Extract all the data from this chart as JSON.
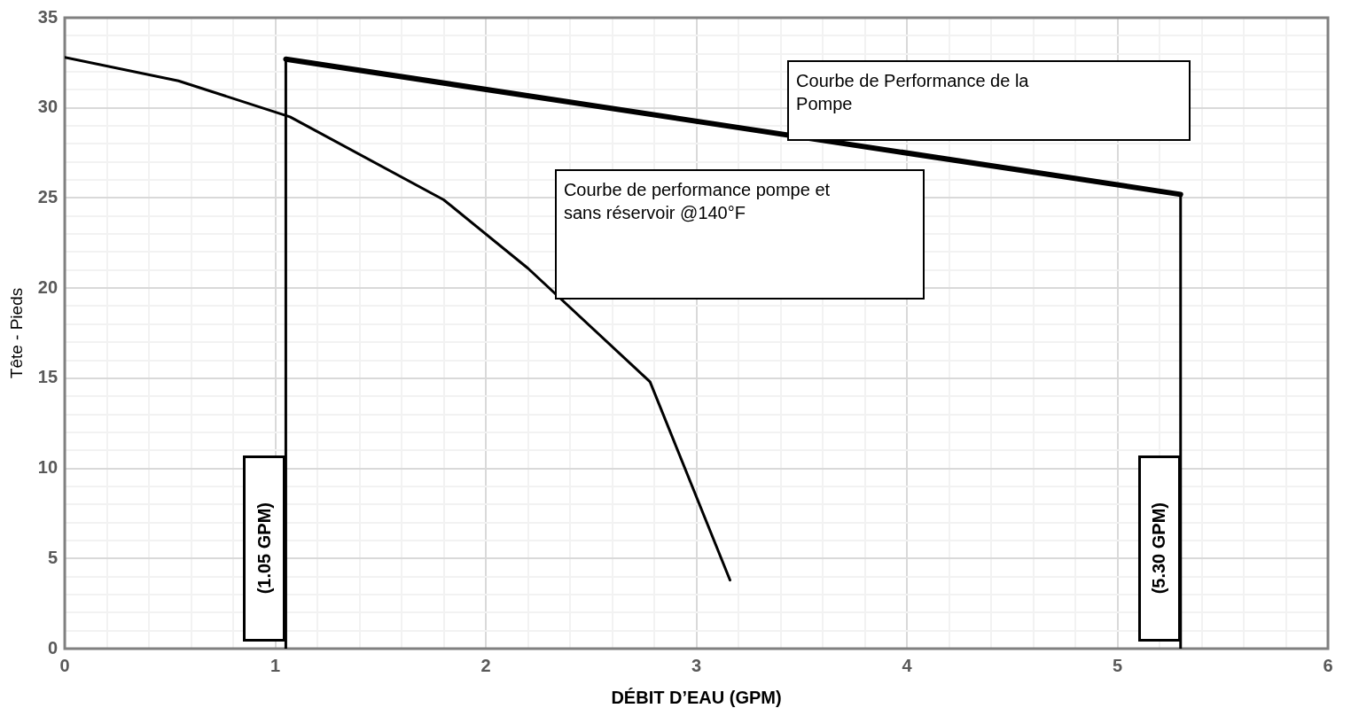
{
  "chart_data": {
    "type": "line",
    "xlabel": "DÉBIT D’EAU (GPM)",
    "ylabel": "Tête - Pieds",
    "xlim": [
      0,
      6
    ],
    "ylim": [
      0,
      35
    ],
    "xticks": [
      0,
      {
        "value": 0.2,
        "label": null
      },
      {
        "value": 0.4,
        "label": null
      },
      {
        "value": 0.6,
        "label": null
      },
      {
        "value": 0.8,
        "label": null
      },
      1,
      {
        "value": 1.2,
        "label": null
      },
      {
        "value": 1.4,
        "label": null
      },
      {
        "value": 1.6,
        "label": null
      },
      {
        "value": 1.8,
        "label": null
      },
      2,
      {
        "value": 2.2,
        "label": null
      },
      {
        "value": 2.4,
        "label": null
      },
      {
        "value": 2.6,
        "label": null
      },
      {
        "value": 2.8,
        "label": null
      },
      3,
      {
        "value": 3.2,
        "label": null
      },
      {
        "value": 3.4,
        "label": null
      },
      {
        "value": 3.6,
        "label": null
      },
      {
        "value": 3.8,
        "label": null
      },
      4,
      {
        "value": 4.2,
        "label": null
      },
      {
        "value": 4.4,
        "label": null
      },
      {
        "value": 4.6,
        "label": null
      },
      {
        "value": 4.8,
        "label": null
      },
      5,
      {
        "value": 5.2,
        "label": null
      },
      {
        "value": 5.4,
        "label": null
      },
      {
        "value": 5.6,
        "label": null
      },
      {
        "value": 5.8,
        "label": null
      },
      6
    ],
    "yticks": [
      0,
      {
        "value": 1,
        "label": null
      },
      {
        "value": 2,
        "label": null
      },
      {
        "value": 3,
        "label": null
      },
      {
        "value": 4,
        "label": null
      },
      5,
      {
        "value": 6,
        "label": null
      },
      {
        "value": 7,
        "label": null
      },
      {
        "value": 8,
        "label": null
      },
      {
        "value": 9,
        "label": null
      },
      10,
      {
        "value": 11,
        "label": null
      },
      {
        "value": 12,
        "label": null
      },
      {
        "value": 13,
        "label": null
      },
      {
        "value": 14,
        "label": null
      },
      15,
      {
        "value": 16,
        "label": null
      },
      {
        "value": 17,
        "label": null
      },
      {
        "value": 18,
        "label": null
      },
      {
        "value": 19,
        "label": null
      },
      20,
      {
        "value": 21,
        "label": null
      },
      {
        "value": 22,
        "label": null
      },
      {
        "value": 23,
        "label": null
      },
      {
        "value": 24,
        "label": null
      },
      25,
      {
        "value": 26,
        "label": null
      },
      {
        "value": 27,
        "label": null
      },
      {
        "value": 28,
        "label": null
      },
      {
        "value": 29,
        "label": null
      },
      30,
      {
        "value": 31,
        "label": null
      },
      {
        "value": 32,
        "label": null
      },
      {
        "value": 33,
        "label": null
      },
      {
        "value": 34,
        "label": null
      },
      35
    ],
    "grid": true,
    "legend": false,
    "marker": "none",
    "line_style": "solid",
    "series": [
      {
        "color": "#000000",
        "x": [
          0,
          0.54,
          1.07,
          1.8,
          2.2,
          2.78,
          3.16
        ],
        "values": [
          32.8,
          31.5,
          29.5,
          24.9,
          21.1,
          14.8,
          3.8
        ]
      },
      {
        "color": "#000000",
        "x": [
          1.05,
          1.05,
          5.3,
          5.3
        ],
        "values": [
          0,
          32.7,
          25.2,
          0
        ]
      }
    ],
    "annotations": [
      "Courbe de performance pompe et sans réservoir @140°F",
      "Courbe de Performance de la Pompe",
      "(1.05 GPM)",
      "(5.30 GPM)"
    ]
  }
}
